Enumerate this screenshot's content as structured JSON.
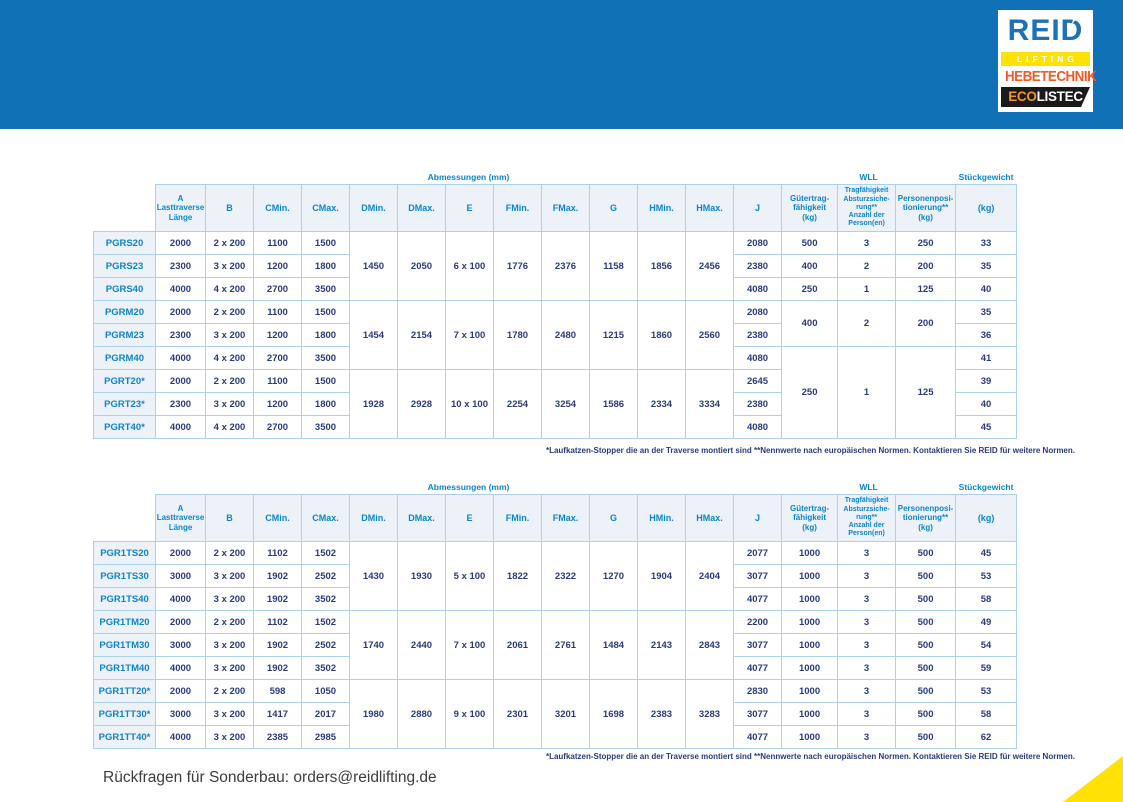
{
  "colors": {
    "header_blue": "#1171B7",
    "table_label_blue": "#0C84CB",
    "value_navy": "#2B3A7D",
    "grid_light_blue": "#ABD1EC",
    "header_cell_fill": "#EDF2F9",
    "accent_yellow": "#FFE105",
    "hebetechnik_orange": "#F15A25",
    "eco_orange": "#F7941D"
  },
  "logo": {
    "brand": "REID",
    "sub_brand": "LIFTING",
    "line3": "HEBETECHNIK",
    "eco": "ECO",
    "listec": "LISTEC"
  },
  "table_headers": {
    "dimensions_group": "Abmessungen (mm)",
    "wll_group": "WLL",
    "unit_weight_group": "Stückgewicht",
    "columns": [
      "A\nLasttraverse\nLänge",
      "B",
      "CMin.",
      "CMax.",
      "DMin.",
      "DMax.",
      "E",
      "FMin.",
      "FMax.",
      "G",
      "HMin.",
      "HMax.",
      "J",
      "Gütertrag-\nfähigkeit\n(kg)",
      "Tragfähigkeit\nAbsturzsiche-\nrung**\nAnzahl der\nPerson(en)",
      "Personenposi-\ntionierung**\n(kg)",
      "(kg)"
    ]
  },
  "footnote": "*Laufkatzen-Stopper die an der Traverse montiert sind **Nennwerte nach europäischen Normen. Kontaktieren Sie REID für weitere Normen.",
  "page": {
    "footer_contact": "Rückfragen für Sonderbau: orders@reidlifting.de"
  },
  "tables": [
    {
      "rows": [
        {
          "model": "PGRS20",
          "a": "2000",
          "b": "2 x 200",
          "cmin": "1100",
          "cmax": "1500",
          "j": "2080",
          "weight": "33"
        },
        {
          "model": "PGRS23",
          "a": "2300",
          "b": "3 x 200",
          "cmin": "1200",
          "cmax": "1800",
          "j": "2380",
          "weight": "35"
        },
        {
          "model": "PGRS40",
          "a": "4000",
          "b": "4 x 200",
          "cmin": "2700",
          "cmax": "3500",
          "j": "4080",
          "weight": "40"
        },
        {
          "model": "PGRM20",
          "a": "2000",
          "b": "2 x 200",
          "cmin": "1100",
          "cmax": "1500",
          "j": "2080",
          "weight": "35"
        },
        {
          "model": "PGRM23",
          "a": "2300",
          "b": "3 x 200",
          "cmin": "1200",
          "cmax": "1800",
          "j": "2380",
          "weight": "36"
        },
        {
          "model": "PGRM40",
          "a": "4000",
          "b": "4 x 200",
          "cmin": "2700",
          "cmax": "3500",
          "j": "4080",
          "weight": "41"
        },
        {
          "model": "PGRT20*",
          "a": "2000",
          "b": "2 x 200",
          "cmin": "1100",
          "cmax": "1500",
          "j": "2645",
          "weight": "39"
        },
        {
          "model": "PGRT23*",
          "a": "2300",
          "b": "3 x 200",
          "cmin": "1200",
          "cmax": "1800",
          "j": "2380",
          "weight": "40"
        },
        {
          "model": "PGRT40*",
          "a": "4000",
          "b": "4 x 200",
          "cmin": "2700",
          "cmax": "3500",
          "j": "4080",
          "weight": "45"
        }
      ],
      "dim_groups": [
        {
          "dmin": "1450",
          "dmax": "2050",
          "e": "6 x 100",
          "fmin": "1776",
          "fmax": "2376",
          "g": "1158",
          "hmin": "1856",
          "hmax": "2456"
        },
        {
          "dmin": "1454",
          "dmax": "2154",
          "e": "7 x 100",
          "fmin": "1780",
          "fmax": "2480",
          "g": "1215",
          "hmin": "1860",
          "hmax": "2560"
        },
        {
          "dmin": "1928",
          "dmax": "2928",
          "e": "10 x 100",
          "fmin": "2254",
          "fmax": "3254",
          "g": "1586",
          "hmin": "2334",
          "hmax": "3334"
        }
      ],
      "wll_blocks": [
        {
          "start": 0,
          "span": 1,
          "goods": "500",
          "persons": "3",
          "positioning": "250"
        },
        {
          "start": 1,
          "span": 1,
          "goods": "400",
          "persons": "2",
          "positioning": "200"
        },
        {
          "start": 2,
          "span": 1,
          "goods": "250",
          "persons": "1",
          "positioning": "125"
        },
        {
          "start": 3,
          "span": 2,
          "goods": "400",
          "persons": "2",
          "positioning": "200"
        },
        {
          "start": 5,
          "span": 4,
          "goods": "250",
          "persons": "1",
          "positioning": "125"
        }
      ]
    },
    {
      "rows": [
        {
          "model": "PGR1TS20",
          "a": "2000",
          "b": "2 x 200",
          "cmin": "1102",
          "cmax": "1502",
          "j": "2077",
          "weight": "45"
        },
        {
          "model": "PGR1TS30",
          "a": "3000",
          "b": "3 x 200",
          "cmin": "1902",
          "cmax": "2502",
          "j": "3077",
          "weight": "53"
        },
        {
          "model": "PGR1TS40",
          "a": "4000",
          "b": "3 x 200",
          "cmin": "1902",
          "cmax": "3502",
          "j": "4077",
          "weight": "58"
        },
        {
          "model": "PGR1TM20",
          "a": "2000",
          "b": "2 x 200",
          "cmin": "1102",
          "cmax": "1502",
          "j": "2200",
          "weight": "49"
        },
        {
          "model": "PGR1TM30",
          "a": "3000",
          "b": "3 x 200",
          "cmin": "1902",
          "cmax": "2502",
          "j": "3077",
          "weight": "54"
        },
        {
          "model": "PGR1TM40",
          "a": "4000",
          "b": "3 x 200",
          "cmin": "1902",
          "cmax": "3502",
          "j": "4077",
          "weight": "59"
        },
        {
          "model": "PGR1TT20*",
          "a": "2000",
          "b": "2 x 200",
          "cmin": "598",
          "cmax": "1050",
          "j": "2830",
          "weight": "53"
        },
        {
          "model": "PGR1TT30*",
          "a": "3000",
          "b": "3 x 200",
          "cmin": "1417",
          "cmax": "2017",
          "j": "3077",
          "weight": "58"
        },
        {
          "model": "PGR1TT40*",
          "a": "4000",
          "b": "3 x 200",
          "cmin": "2385",
          "cmax": "2985",
          "j": "4077",
          "weight": "62"
        }
      ],
      "dim_groups": [
        {
          "dmin": "1430",
          "dmax": "1930",
          "e": "5 x 100",
          "fmin": "1822",
          "fmax": "2322",
          "g": "1270",
          "hmin": "1904",
          "hmax": "2404"
        },
        {
          "dmin": "1740",
          "dmax": "2440",
          "e": "7 x 100",
          "fmin": "2061",
          "fmax": "2761",
          "g": "1484",
          "hmin": "2143",
          "hmax": "2843"
        },
        {
          "dmin": "1980",
          "dmax": "2880",
          "e": "9 x 100",
          "fmin": "2301",
          "fmax": "3201",
          "g": "1698",
          "hmin": "2383",
          "hmax": "3283"
        }
      ],
      "wll_blocks": [
        {
          "start": 0,
          "span": 1,
          "goods": "1000",
          "persons": "3",
          "positioning": "500"
        },
        {
          "start": 1,
          "span": 1,
          "goods": "1000",
          "persons": "3",
          "positioning": "500"
        },
        {
          "start": 2,
          "span": 1,
          "goods": "1000",
          "persons": "3",
          "positioning": "500"
        },
        {
          "start": 3,
          "span": 1,
          "goods": "1000",
          "persons": "3",
          "positioning": "500"
        },
        {
          "start": 4,
          "span": 1,
          "goods": "1000",
          "persons": "3",
          "positioning": "500"
        },
        {
          "start": 5,
          "span": 1,
          "goods": "1000",
          "persons": "3",
          "positioning": "500"
        },
        {
          "start": 6,
          "span": 1,
          "goods": "1000",
          "persons": "3",
          "positioning": "500"
        },
        {
          "start": 7,
          "span": 1,
          "goods": "1000",
          "persons": "3",
          "positioning": "500"
        },
        {
          "start": 8,
          "span": 1,
          "goods": "1000",
          "persons": "3",
          "positioning": "500"
        }
      ]
    }
  ]
}
